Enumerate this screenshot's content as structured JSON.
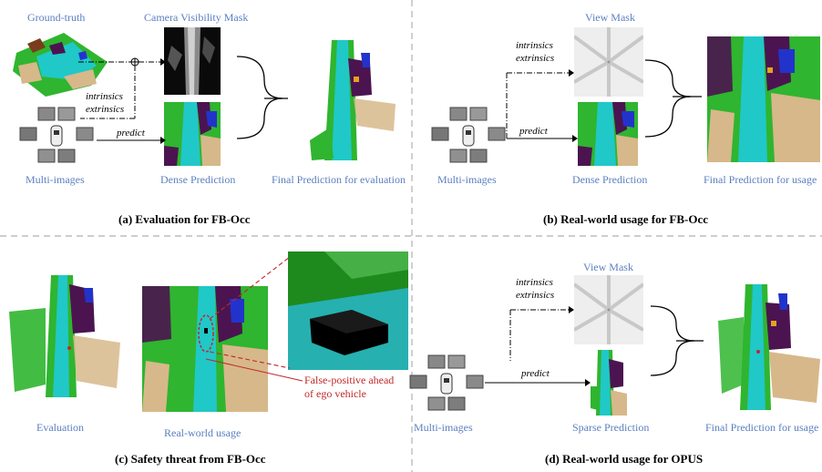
{
  "panels": {
    "a": {
      "caption": "(a) Evaluation for FB-Occ",
      "labels": {
        "ground_truth": "Ground-truth",
        "visibility_mask": "Camera Visibility Mask",
        "multi_images": "Multi-images",
        "dense_prediction": "Dense Prediction",
        "final_eval": "Final Prediction for evaluation"
      },
      "arrows": {
        "intrinsics": "intrinsics",
        "extrinsics": "extrinsics",
        "predict": "predict"
      }
    },
    "b": {
      "caption": "(b) Real-world usage for FB-Occ",
      "labels": {
        "view_mask": "View Mask",
        "multi_images": "Multi-images",
        "dense_prediction": "Dense Prediction",
        "final_usage": "Final Prediction for usage"
      },
      "arrows": {
        "intrinsics": "intrinsics",
        "extrinsics": "extrinsics",
        "predict": "predict"
      }
    },
    "c": {
      "caption": "(c) Safety threat from FB-Occ",
      "labels": {
        "evaluation": "Evaluation",
        "real_world": "Real-world usage"
      },
      "note_line1": "False-positive ahead",
      "note_line2": "of ego vehicle"
    },
    "d": {
      "caption": "(d) Real-world usage for OPUS",
      "labels": {
        "view_mask": "View Mask",
        "multi_images": "Multi-images",
        "sparse_prediction": "Sparse Prediction",
        "final_usage": "Final Prediction for usage"
      },
      "arrows": {
        "intrinsics": "intrinsics",
        "extrinsics": "extrinsics",
        "predict": "predict"
      }
    }
  },
  "colors": {
    "label_blue": "#5b7fc0",
    "note_red": "#c0282a",
    "road_cyan": "#20c8c8",
    "vegetation_green": "#2fb52f",
    "terrain_tan": "#d7b88a",
    "sidewalk_purple": "#4b1450",
    "car_blue": "#2233cc",
    "divider_gray": "#b0b0b0"
  }
}
